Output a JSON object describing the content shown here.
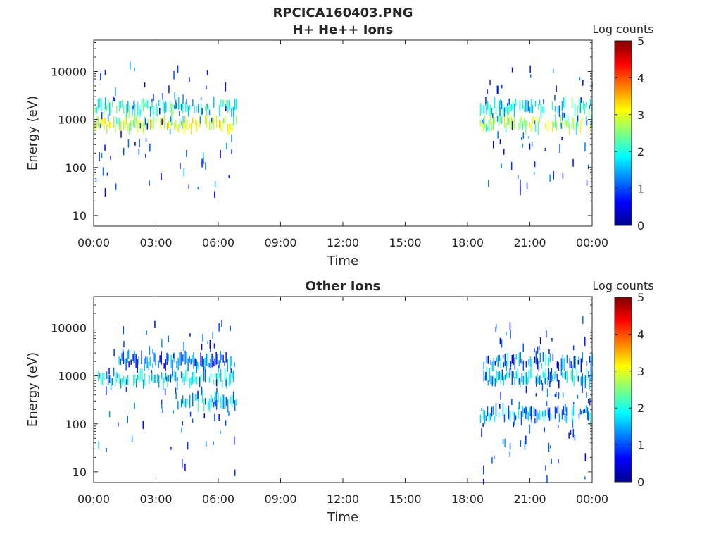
{
  "figure": {
    "title": "RPCICA160403.PNG"
  },
  "colorbar": {
    "label": "Log counts",
    "range": [
      0,
      5
    ],
    "ticks": [
      "0",
      "1",
      "2",
      "3",
      "4",
      "5"
    ],
    "colormap": "jet",
    "colors": [
      "#00008f",
      "#0000ff",
      "#00ffff",
      "#ffff00",
      "#ff0000",
      "#800000"
    ]
  },
  "chart_data": [
    {
      "type": "heatmap",
      "title": "H+ He++ Ions",
      "xlabel": "Time",
      "ylabel": "Energy (eV)",
      "x_ticks": [
        "00:00",
        "03:00",
        "06:00",
        "09:00",
        "12:00",
        "15:00",
        "18:00",
        "21:00",
        "00:00"
      ],
      "xlim_hours": [
        0,
        24
      ],
      "y_scale": "log",
      "y_ticks": [
        "10",
        "100",
        "1000",
        "10000"
      ],
      "ylim": [
        6,
        45000
      ],
      "grid": false,
      "series": [
        {
          "start_hour": 0.0,
          "end_hour": 6.9,
          "energy_ev": 800,
          "log_counts": 2.8
        },
        {
          "start_hour": 0.0,
          "end_hour": 6.9,
          "energy_ev": 1800,
          "log_counts": 2.0
        },
        {
          "start_hour": 18.6,
          "end_hour": 24.0,
          "energy_ev": 800,
          "log_counts": 2.6
        },
        {
          "start_hour": 18.6,
          "end_hour": 24.0,
          "energy_ev": 1800,
          "log_counts": 1.8
        }
      ]
    },
    {
      "type": "heatmap",
      "title": "Other Ions",
      "xlabel": "Time",
      "ylabel": "Energy (eV)",
      "x_ticks": [
        "00:00",
        "03:00",
        "06:00",
        "09:00",
        "12:00",
        "15:00",
        "18:00",
        "21:00",
        "00:00"
      ],
      "xlim_hours": [
        0,
        24
      ],
      "y_scale": "log",
      "y_ticks": [
        "10",
        "100",
        "1000",
        "10000"
      ],
      "ylim": [
        6,
        45000
      ],
      "grid": false,
      "series": [
        {
          "start_hour": 0.2,
          "end_hour": 6.8,
          "energy_ev": 850,
          "log_counts": 1.7
        },
        {
          "start_hour": 1.2,
          "end_hour": 6.8,
          "energy_ev": 2000,
          "log_counts": 1.2
        },
        {
          "start_hour": 4.2,
          "end_hour": 6.9,
          "energy_ev": 300,
          "log_counts": 1.7
        },
        {
          "start_hour": 18.7,
          "end_hour": 24.0,
          "energy_ev": 900,
          "log_counts": 1.6
        },
        {
          "start_hour": 18.7,
          "end_hour": 24.0,
          "energy_ev": 2000,
          "log_counts": 1.1
        },
        {
          "start_hour": 18.6,
          "end_hour": 24.0,
          "energy_ev": 160,
          "log_counts": 1.5
        }
      ]
    }
  ]
}
